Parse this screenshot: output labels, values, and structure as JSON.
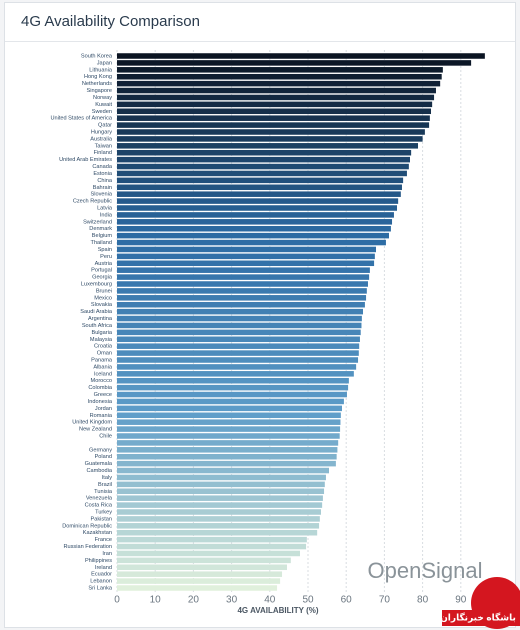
{
  "chart_data": {
    "type": "bar",
    "orientation": "horizontal",
    "title": "4G Availability Comparison",
    "categories": [
      "South Korea",
      "Japan",
      "Lithuania",
      "Hong Kong",
      "Netherlands",
      "Singapore",
      "Norway",
      "Kuwait",
      "Sweden",
      "United States of America",
      "Qatar",
      "Hungary",
      "Australia",
      "Taiwan",
      "Finland",
      "United Arab Emirates",
      "Canada",
      "Estonia",
      "China",
      "Bahrain",
      "Slovenia",
      "Czech Republic",
      "Latvia",
      "India",
      "Switzerland",
      "Denmark",
      "Belgium",
      "Thailand",
      "Spain",
      "Peru",
      "Austria",
      "Portugal",
      "Georgia",
      "Luxembourg",
      "Brunei",
      "Mexico",
      "Slovakia",
      "Saudi Arabia",
      "Argentina",
      "South Africa",
      "Bulgaria",
      "Malaysia",
      "Croatia",
      "Oman",
      "Panama",
      "Albania",
      "Iceland",
      "Morocco",
      "Colombia",
      "Greece",
      "Indonesia",
      "Jordan",
      "Romania",
      "United Kingdom",
      "New Zealand",
      "Chile",
      null,
      "Germany",
      "Poland",
      "Guatemala",
      "Cambodia",
      "Italy",
      "Brazil",
      "Tunisia",
      "Venezuela",
      "Costa Rica",
      "Turkey",
      "Pakistan",
      "Dominican Republic",
      "Kazakhstan",
      "France",
      "Russian Federation",
      "Iran",
      "Philippines",
      "Ireland",
      "Ecuador",
      "Lebanon",
      "Sri Lanka"
    ],
    "values": [
      96.3,
      92.7,
      85.3,
      85,
      84.6,
      83.5,
      83,
      82.5,
      82.2,
      81.9,
      81.7,
      80.6,
      80,
      78.8,
      77,
      76.7,
      76.4,
      75.9,
      74.9,
      74.6,
      74.3,
      73.6,
      73.3,
      72.5,
      72,
      71.7,
      71.2,
      70.4,
      67.8,
      67.5,
      67.3,
      66.2,
      66,
      65.7,
      65.4,
      65.2,
      64.9,
      64.4,
      64.1,
      64,
      63.8,
      63.6,
      63.4,
      63.3,
      63.1,
      62.6,
      62,
      60.7,
      60.5,
      60.2,
      59.4,
      58.9,
      58.6,
      58.5,
      58.4,
      58.3,
      57.9,
      57.7,
      57.5,
      57.3,
      55.5,
      54.7,
      54.4,
      54.2,
      53.9,
      53.7,
      53.4,
      53.1,
      52.9,
      52.4,
      49.7,
      49.5,
      47.9,
      45.5,
      44.5,
      43.2,
      42.7,
      41.9
    ],
    "color_scale": [
      "#0b1422",
      "#2b6aa3",
      "#5d9cc8",
      "#e0f0dc"
    ],
    "xlabel": "4G AVAILABILITY (%)",
    "xlim": [
      0,
      100
    ],
    "xticks": [
      0,
      10,
      20,
      30,
      40,
      50,
      60,
      70,
      80,
      90
    ],
    "grid": true,
    "logo": "OpenSignal",
    "watermark": "باشگاه خبرنگاران"
  }
}
